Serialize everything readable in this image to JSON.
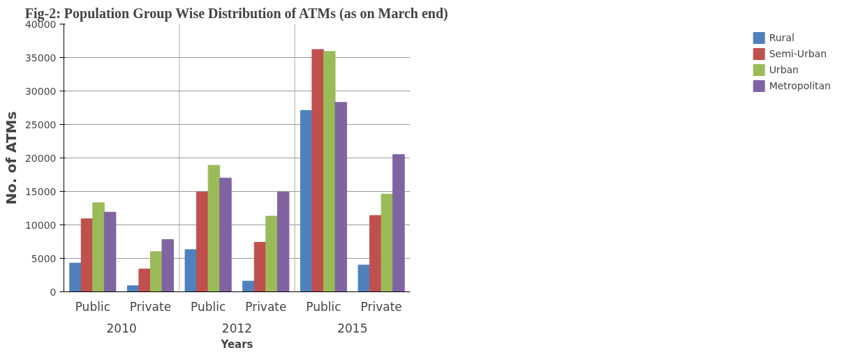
{
  "chart_data": {
    "type": "bar",
    "title": "Fig-2: Population Group Wise Distribution of ATMs (as on March end)",
    "xlabel": "Years",
    "ylabel": "No. of ATMs",
    "categories": [
      "Public",
      "Private",
      "Public",
      "Private",
      "Public",
      "Private"
    ],
    "annotations": [
      "2010",
      "2012",
      "2015"
    ],
    "series": [
      {
        "name": "Rural",
        "color": "#4f81bd",
        "values": [
          4300,
          900,
          6300,
          1600,
          27100,
          4000
        ]
      },
      {
        "name": "Semi-Urban",
        "color": "#c0504d",
        "values": [
          10900,
          3400,
          14900,
          7400,
          36200,
          11400
        ]
      },
      {
        "name": "Urban",
        "color": "#9bbb59",
        "values": [
          13300,
          6000,
          18900,
          11300,
          35900,
          14600
        ]
      },
      {
        "name": "Metropolitan",
        "color": "#8064a2",
        "values": [
          11900,
          7800,
          17000,
          14900,
          28300,
          20500
        ]
      }
    ],
    "ylim": [
      0,
      40000
    ],
    "yticks": [
      0,
      5000,
      10000,
      15000,
      20000,
      25000,
      30000,
      35000,
      40000
    ],
    "grid": "y",
    "legend": "right"
  }
}
